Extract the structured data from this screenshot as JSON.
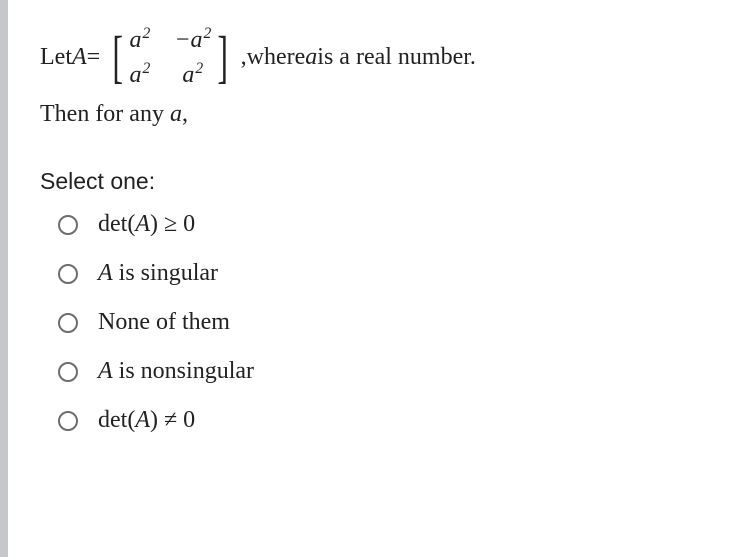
{
  "question": {
    "let_text": "Let ",
    "var_A": "A",
    "equals": " = ",
    "matrix": {
      "m11_a": "a",
      "m11_sup": "2",
      "m12_neg": "−",
      "m12_a": "a",
      "m12_sup": "2",
      "m21_a": "a",
      "m21_sup": "2",
      "m22_a": "a",
      "m22_sup": "2"
    },
    "comma": ",",
    "where_text": " where ",
    "var_a": "a",
    "real_text": " is a real number.",
    "then_text": "Then for any ",
    "then_var": "a",
    "then_comma": ","
  },
  "select_label": "Select one:",
  "options": {
    "opt0": {
      "pre": "det(",
      "var": "A",
      "post": ") ≥ 0"
    },
    "opt1": {
      "var": "A",
      "post": " is singular"
    },
    "opt2": {
      "text": "None of them"
    },
    "opt3": {
      "var": "A",
      "post": " is nonsingular"
    },
    "opt4": {
      "pre": "det(",
      "var": "A",
      "post": ") ≠ 0"
    }
  },
  "colors": {
    "border": "#c5c7cb",
    "text": "#222222",
    "radio_border": "#6d6d6d",
    "background": "#ffffff"
  }
}
